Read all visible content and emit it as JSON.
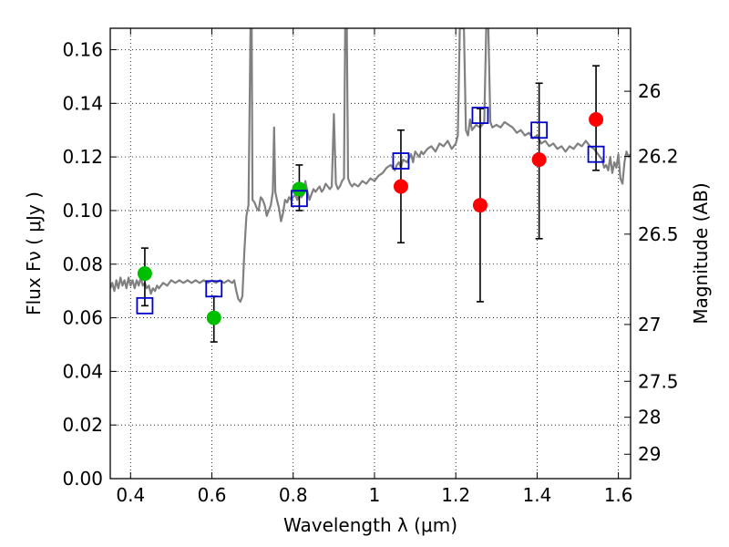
{
  "chart_data": {
    "type": "scatter",
    "xlabel": "Wavelength  λ (μm)",
    "ylabel": "Flux  Fν  ( μJy )",
    "ylabel_right": "Magnitude (AB)",
    "xlim": [
      0.35,
      1.63
    ],
    "ylim": [
      0.0,
      0.168
    ],
    "grid": true,
    "x_ticks": [
      {
        "value": 0.4,
        "label": "0.4"
      },
      {
        "value": 0.6,
        "label": "0.6"
      },
      {
        "value": 0.8,
        "label": "0.8"
      },
      {
        "value": 1.0,
        "label": "1"
      },
      {
        "value": 1.2,
        "label": "1.2"
      },
      {
        "value": 1.4,
        "label": "1.4"
      },
      {
        "value": 1.6,
        "label": "1.6"
      }
    ],
    "y_ticks": [
      {
        "value": 0.0,
        "label": "0.00"
      },
      {
        "value": 0.02,
        "label": "0.02"
      },
      {
        "value": 0.04,
        "label": "0.04"
      },
      {
        "value": 0.06,
        "label": "0.06"
      },
      {
        "value": 0.08,
        "label": "0.08"
      },
      {
        "value": 0.1,
        "label": "0.10"
      },
      {
        "value": 0.12,
        "label": "0.12"
      },
      {
        "value": 0.14,
        "label": "0.14"
      },
      {
        "value": 0.16,
        "label": "0.16"
      }
    ],
    "right_ticks": [
      {
        "flux": 0.1445,
        "label": "26"
      },
      {
        "flux": 0.1202,
        "label": "26.2"
      },
      {
        "flux": 0.0912,
        "label": "26.5"
      },
      {
        "flux": 0.0575,
        "label": "27"
      },
      {
        "flux": 0.0363,
        "label": "27.5"
      },
      {
        "flux": 0.0229,
        "label": "28"
      },
      {
        "flux": 0.0091,
        "label": "29"
      }
    ],
    "series": [
      {
        "kind": "points",
        "marker": "circle",
        "color": "#00bf00",
        "x": [
          0.435,
          0.605,
          0.815
        ],
        "y": [
          0.0765,
          0.06,
          0.108
        ],
        "yerr_low": [
          0.0645,
          0.051,
          0.1
        ],
        "yerr_high": [
          0.086,
          0.068,
          0.117
        ]
      },
      {
        "kind": "points",
        "marker": "circle",
        "color": "#ff0000",
        "x": [
          1.065,
          1.26,
          1.405,
          1.545
        ],
        "y": [
          0.109,
          0.102,
          0.119,
          0.134
        ],
        "yerr_low": [
          0.088,
          0.066,
          0.0895,
          0.115
        ],
        "yerr_high": [
          0.13,
          0.138,
          0.1475,
          0.154
        ]
      },
      {
        "kind": "points",
        "marker": "open-square",
        "color": "#0000cc",
        "x": [
          0.435,
          0.605,
          0.815,
          1.065,
          1.26,
          1.405,
          1.545
        ],
        "y": [
          0.0645,
          0.0708,
          0.1045,
          0.1185,
          0.1355,
          0.13,
          0.121
        ]
      },
      {
        "kind": "spectrum",
        "color": "#808080",
        "points": [
          [
            0.35,
            0.071
          ],
          [
            0.355,
            0.073
          ],
          [
            0.36,
            0.07
          ],
          [
            0.365,
            0.074
          ],
          [
            0.37,
            0.071
          ],
          [
            0.375,
            0.075
          ],
          [
            0.38,
            0.072
          ],
          [
            0.385,
            0.074
          ],
          [
            0.39,
            0.071
          ],
          [
            0.395,
            0.075
          ],
          [
            0.4,
            0.072
          ],
          [
            0.405,
            0.074
          ],
          [
            0.41,
            0.071
          ],
          [
            0.415,
            0.074
          ],
          [
            0.42,
            0.072
          ],
          [
            0.425,
            0.075
          ],
          [
            0.43,
            0.072
          ],
          [
            0.435,
            0.073
          ],
          [
            0.44,
            0.071
          ],
          [
            0.445,
            0.072
          ],
          [
            0.45,
            0.069
          ],
          [
            0.455,
            0.071
          ],
          [
            0.46,
            0.07
          ],
          [
            0.465,
            0.072
          ],
          [
            0.47,
            0.071
          ],
          [
            0.48,
            0.073
          ],
          [
            0.49,
            0.072
          ],
          [
            0.5,
            0.074
          ],
          [
            0.51,
            0.073
          ],
          [
            0.52,
            0.074
          ],
          [
            0.53,
            0.073
          ],
          [
            0.54,
            0.074
          ],
          [
            0.55,
            0.073
          ],
          [
            0.56,
            0.074
          ],
          [
            0.57,
            0.073
          ],
          [
            0.58,
            0.074
          ],
          [
            0.59,
            0.073
          ],
          [
            0.6,
            0.074
          ],
          [
            0.61,
            0.073
          ],
          [
            0.62,
            0.074
          ],
          [
            0.63,
            0.073
          ],
          [
            0.64,
            0.074
          ],
          [
            0.65,
            0.073
          ],
          [
            0.655,
            0.074
          ],
          [
            0.66,
            0.07
          ],
          [
            0.665,
            0.067
          ],
          [
            0.67,
            0.066
          ],
          [
            0.675,
            0.068
          ],
          [
            0.68,
            0.085
          ],
          [
            0.685,
            0.098
          ],
          [
            0.69,
            0.102
          ],
          [
            0.695,
            0.168
          ],
          [
            0.698,
            0.168
          ],
          [
            0.7,
            0.104
          ],
          [
            0.705,
            0.103
          ],
          [
            0.71,
            0.101
          ],
          [
            0.715,
            0.1
          ],
          [
            0.72,
            0.105
          ],
          [
            0.725,
            0.104
          ],
          [
            0.73,
            0.102
          ],
          [
            0.735,
            0.098
          ],
          [
            0.74,
            0.1
          ],
          [
            0.745,
            0.102
          ],
          [
            0.75,
            0.107
          ],
          [
            0.753,
            0.131
          ],
          [
            0.756,
            0.107
          ],
          [
            0.76,
            0.104
          ],
          [
            0.765,
            0.101
          ],
          [
            0.77,
            0.096
          ],
          [
            0.775,
            0.099
          ],
          [
            0.78,
            0.104
          ],
          [
            0.785,
            0.103
          ],
          [
            0.79,
            0.105
          ],
          [
            0.795,
            0.104
          ],
          [
            0.8,
            0.105
          ],
          [
            0.805,
            0.106
          ],
          [
            0.81,
            0.104
          ],
          [
            0.815,
            0.106
          ],
          [
            0.82,
            0.105
          ],
          [
            0.825,
            0.106
          ],
          [
            0.83,
            0.111
          ],
          [
            0.835,
            0.107
          ],
          [
            0.84,
            0.104
          ],
          [
            0.845,
            0.106
          ],
          [
            0.85,
            0.108
          ],
          [
            0.855,
            0.107
          ],
          [
            0.86,
            0.108
          ],
          [
            0.865,
            0.109
          ],
          [
            0.87,
            0.107
          ],
          [
            0.875,
            0.108
          ],
          [
            0.88,
            0.11
          ],
          [
            0.885,
            0.109
          ],
          [
            0.89,
            0.108
          ],
          [
            0.895,
            0.109
          ],
          [
            0.9,
            0.136
          ],
          [
            0.905,
            0.11
          ],
          [
            0.91,
            0.108
          ],
          [
            0.915,
            0.109
          ],
          [
            0.92,
            0.111
          ],
          [
            0.925,
            0.112
          ],
          [
            0.928,
            0.168
          ],
          [
            0.932,
            0.168
          ],
          [
            0.935,
            0.112
          ],
          [
            0.94,
            0.11
          ],
          [
            0.945,
            0.109
          ],
          [
            0.95,
            0.11
          ],
          [
            0.96,
            0.109
          ],
          [
            0.97,
            0.111
          ],
          [
            0.98,
            0.11
          ],
          [
            0.99,
            0.112
          ],
          [
            1.0,
            0.111
          ],
          [
            1.01,
            0.113
          ],
          [
            1.02,
            0.114
          ],
          [
            1.03,
            0.116
          ],
          [
            1.04,
            0.117
          ],
          [
            1.05,
            0.115
          ],
          [
            1.055,
            0.117
          ],
          [
            1.06,
            0.118
          ],
          [
            1.065,
            0.116
          ],
          [
            1.07,
            0.119
          ],
          [
            1.08,
            0.118
          ],
          [
            1.09,
            0.121
          ],
          [
            1.095,
            0.118
          ],
          [
            1.1,
            0.122
          ],
          [
            1.11,
            0.12
          ],
          [
            1.115,
            0.122
          ],
          [
            1.12,
            0.121
          ],
          [
            1.13,
            0.123
          ],
          [
            1.14,
            0.124
          ],
          [
            1.15,
            0.122
          ],
          [
            1.16,
            0.125
          ],
          [
            1.17,
            0.124
          ],
          [
            1.18,
            0.126
          ],
          [
            1.19,
            0.123
          ],
          [
            1.2,
            0.125
          ],
          [
            1.205,
            0.128
          ],
          [
            1.21,
            0.168
          ],
          [
            1.22,
            0.168
          ],
          [
            1.225,
            0.13
          ],
          [
            1.23,
            0.128
          ],
          [
            1.235,
            0.134
          ],
          [
            1.24,
            0.13
          ],
          [
            1.25,
            0.132
          ],
          [
            1.26,
            0.131
          ],
          [
            1.27,
            0.133
          ],
          [
            1.275,
            0.168
          ],
          [
            1.28,
            0.168
          ],
          [
            1.285,
            0.133
          ],
          [
            1.29,
            0.131
          ],
          [
            1.3,
            0.132
          ],
          [
            1.31,
            0.131
          ],
          [
            1.32,
            0.133
          ],
          [
            1.33,
            0.132
          ],
          [
            1.34,
            0.131
          ],
          [
            1.35,
            0.129
          ],
          [
            1.36,
            0.13
          ],
          [
            1.37,
            0.128
          ],
          [
            1.38,
            0.129
          ],
          [
            1.39,
            0.127
          ],
          [
            1.4,
            0.128
          ],
          [
            1.41,
            0.125
          ],
          [
            1.42,
            0.126
          ],
          [
            1.43,
            0.124
          ],
          [
            1.44,
            0.125
          ],
          [
            1.45,
            0.123
          ],
          [
            1.46,
            0.124
          ],
          [
            1.47,
            0.122
          ],
          [
            1.48,
            0.124
          ],
          [
            1.49,
            0.123
          ],
          [
            1.5,
            0.125
          ],
          [
            1.51,
            0.124
          ],
          [
            1.52,
            0.126
          ],
          [
            1.53,
            0.124
          ],
          [
            1.54,
            0.123
          ],
          [
            1.55,
            0.121
          ],
          [
            1.56,
            0.119
          ],
          [
            1.565,
            0.116
          ],
          [
            1.57,
            0.117
          ],
          [
            1.575,
            0.115
          ],
          [
            1.58,
            0.12
          ],
          [
            1.585,
            0.114
          ],
          [
            1.59,
            0.118
          ],
          [
            1.595,
            0.116
          ],
          [
            1.6,
            0.121
          ],
          [
            1.605,
            0.112
          ],
          [
            1.61,
            0.11
          ],
          [
            1.615,
            0.118
          ],
          [
            1.62,
            0.122
          ],
          [
            1.625,
            0.12
          ],
          [
            1.63,
            0.121
          ]
        ]
      }
    ]
  }
}
